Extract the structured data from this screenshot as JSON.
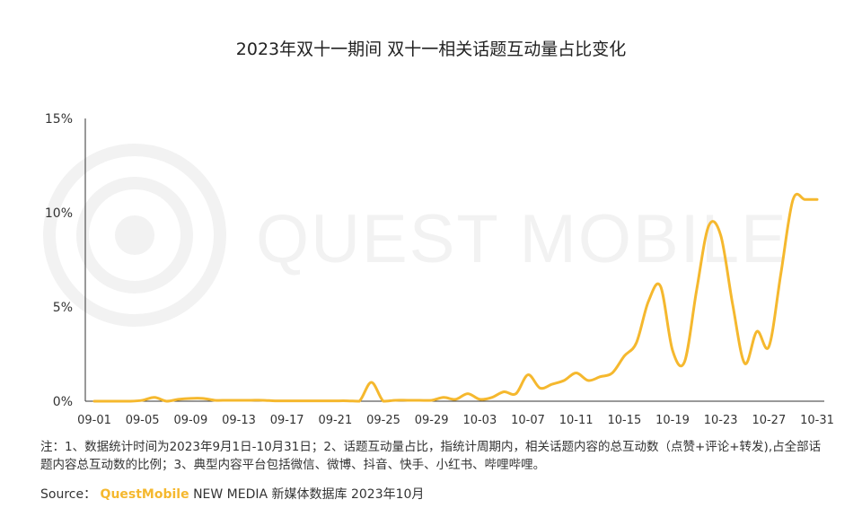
{
  "title": "2023年双十一期间 双十一相关话题互动量占比变化",
  "note": "注：1、数据统计时间为2023年9月1日-10月31日；2、话题互动量占比，指统计周期内，相关话题内容的总互动数（点赞+评论+转发),占全部话题内容总互动数的比例；3、典型内容平台包括微信、微博、抖音、快手、小红书、哔哩哔哩。",
  "source": {
    "label": "Source：",
    "brand": "QuestMobile",
    "rest": "NEW MEDIA 新媒体数据库 2023年10月"
  },
  "watermark": "QUEST MOBILE",
  "colors": {
    "line": "#f5b82e",
    "axis": "#333333",
    "watermark": "#f2f2f2"
  },
  "chart_data": {
    "type": "line",
    "ylim": [
      0,
      15
    ],
    "ytick_labels": [
      "0%",
      "5%",
      "10%",
      "15%"
    ],
    "yticks": [
      0,
      5,
      10,
      15
    ],
    "xtick_labels": [
      "09-01",
      "09-05",
      "09-09",
      "09-13",
      "09-17",
      "09-21",
      "09-25",
      "09-29",
      "10-03",
      "10-07",
      "10-11",
      "10-15",
      "10-19",
      "10-23",
      "10-27",
      "10-31"
    ],
    "grid": false,
    "series": [
      {
        "x": [
          "09-01",
          "09-02",
          "09-03",
          "09-04",
          "09-05",
          "09-06",
          "09-07",
          "09-08",
          "09-09",
          "09-10",
          "09-11",
          "09-12",
          "09-13",
          "09-14",
          "09-15",
          "09-16",
          "09-17",
          "09-18",
          "09-19",
          "09-20",
          "09-21",
          "09-22",
          "09-23",
          "09-24",
          "09-25",
          "09-26",
          "09-27",
          "09-28",
          "09-29",
          "09-30",
          "10-01",
          "10-02",
          "10-03",
          "10-04",
          "10-05",
          "10-06",
          "10-07",
          "10-08",
          "10-09",
          "10-10",
          "10-11",
          "10-12",
          "10-13",
          "10-14",
          "10-15",
          "10-16",
          "10-17",
          "10-18",
          "10-19",
          "10-20",
          "10-21",
          "10-22",
          "10-23",
          "10-24",
          "10-25",
          "10-26",
          "10-27",
          "10-28",
          "10-29",
          "10-30",
          "10-31"
        ],
        "values": [
          0.0,
          0.0,
          0.0,
          0.0,
          0.05,
          0.2,
          0.0,
          0.1,
          0.15,
          0.15,
          0.05,
          0.05,
          0.05,
          0.05,
          0.05,
          0.02,
          0.02,
          0.02,
          0.02,
          0.02,
          0.02,
          0.02,
          0.0,
          1.0,
          0.0,
          0.05,
          0.05,
          0.05,
          0.05,
          0.2,
          0.1,
          0.4,
          0.1,
          0.2,
          0.5,
          0.4,
          1.4,
          0.7,
          0.9,
          1.1,
          1.5,
          1.1,
          1.3,
          1.5,
          2.4,
          3.1,
          5.3,
          6.1,
          2.7,
          2.1,
          5.9,
          9.3,
          8.8,
          5.1,
          2.0,
          3.7,
          2.9,
          6.8,
          10.7,
          10.7,
          10.7
        ]
      }
    ]
  }
}
